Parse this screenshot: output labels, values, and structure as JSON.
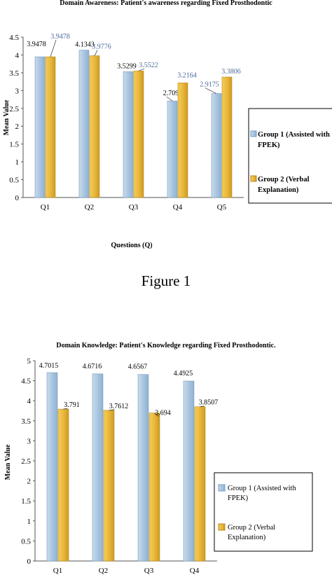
{
  "figure1": {
    "caption": "Figure 1",
    "chart_data": {
      "type": "bar",
      "title": "Domain Awareness: Patient's awareness regarding Fixed Prosthodontic",
      "xlabel": "Questions (Q)",
      "ylabel": "Mean Value",
      "categories": [
        "Q1",
        "Q2",
        "Q3",
        "Q4",
        "Q5"
      ],
      "ylim": [
        0,
        4.5
      ],
      "yticks": [
        "0",
        "0.5",
        "1",
        "1.5",
        "2",
        "2.5",
        "3",
        "3.5",
        "4",
        "4.5"
      ],
      "series": [
        {
          "name": "Group 1 (Assisted with FPEK)",
          "values": [
            3.9478,
            4.1343,
            3.5299,
            2.709,
            2.9175
          ],
          "labels": [
            "3.9478",
            "4.1343",
            "3.5299",
            "2.709",
            "2.9175"
          ]
        },
        {
          "name": "Group 2 (Verbal Explanation)",
          "values": [
            3.9478,
            3.9776,
            3.5522,
            3.2164,
            3.3806
          ],
          "labels": [
            "3.9478",
            "3.9776",
            "3.5522",
            "3.2164",
            "3.3806"
          ]
        }
      ],
      "legend": [
        "Group 1 (Assisted with",
        "FPEK)",
        "Group 2 (Verbal",
        "Explanation)"
      ],
      "legend_position": "right",
      "grid": false
    }
  },
  "figure2": {
    "chart_data": {
      "type": "bar",
      "title": "Domain Knowledge: Patient's Knowledge regarding Fixed Prosthodontic.",
      "xlabel": "",
      "ylabel": "Mean Value",
      "categories": [
        "Q1",
        "Q2",
        "Q3",
        "Q4"
      ],
      "ylim": [
        0,
        5
      ],
      "yticks": [
        "0",
        "0.5",
        "1",
        "1.5",
        "2",
        "2.5",
        "3",
        "3.5",
        "4",
        "4.5",
        "5"
      ],
      "series": [
        {
          "name": "Group 1 (Assisted with FPEK)",
          "values": [
            4.7015,
            4.6716,
            4.6567,
            4.4925
          ],
          "labels": [
            "4.7015",
            "4.6716",
            "4.6567",
            "4.4925"
          ]
        },
        {
          "name": "Group 2 (Verbal Explanation)",
          "values": [
            3.791,
            3.7612,
            3.694,
            3.8507
          ],
          "labels": [
            "3.791",
            "3.7612",
            "3.694",
            "3.8507"
          ]
        }
      ],
      "legend": [
        "Group 1 (Assisted with",
        "FPEK)",
        "Group 2 (Verbal",
        "Explanation)"
      ],
      "legend_position": "right",
      "grid": false
    }
  },
  "colors": {
    "group1": "#a9c6e0",
    "group1_stroke": "#7a9bbd",
    "group2": "#e9b83c",
    "group2_stroke": "#b88a1c",
    "axis": "#555555",
    "blue_label": "#4a6a9a"
  }
}
